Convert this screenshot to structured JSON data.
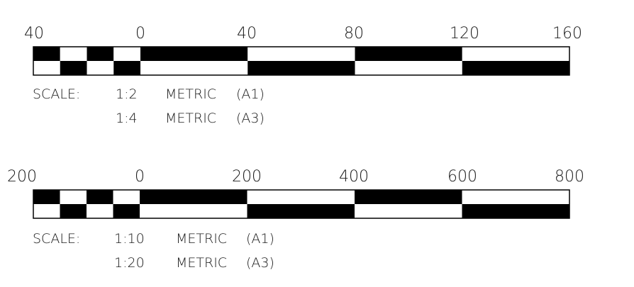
{
  "scale_bars": [
    {
      "tick_labels": [
        "40",
        "0",
        "40",
        "80",
        "120",
        "160"
      ],
      "subdivisions": 4,
      "main_divisions": 4,
      "scale_note": {
        "prefix": "SCALE:",
        "rows": [
          {
            "ratio": "1:2",
            "standard": "METRIC",
            "sheet": "(A1)"
          },
          {
            "ratio": "1:4",
            "standard": "METRIC",
            "sheet": "(A3)"
          }
        ]
      }
    },
    {
      "tick_labels": [
        "200",
        "0",
        "200",
        "400",
        "600",
        "800"
      ],
      "subdivisions": 4,
      "main_divisions": 4,
      "scale_note": {
        "prefix": "SCALE:",
        "rows": [
          {
            "ratio": "1:10",
            "standard": "METRIC",
            "sheet": "(A1)"
          },
          {
            "ratio": "1:20",
            "standard": "METRIC",
            "sheet": "(A3)"
          }
        ]
      }
    }
  ],
  "colors": {
    "ink": "#000000",
    "paper": "#ffffff",
    "text": "#1a1a1a"
  }
}
